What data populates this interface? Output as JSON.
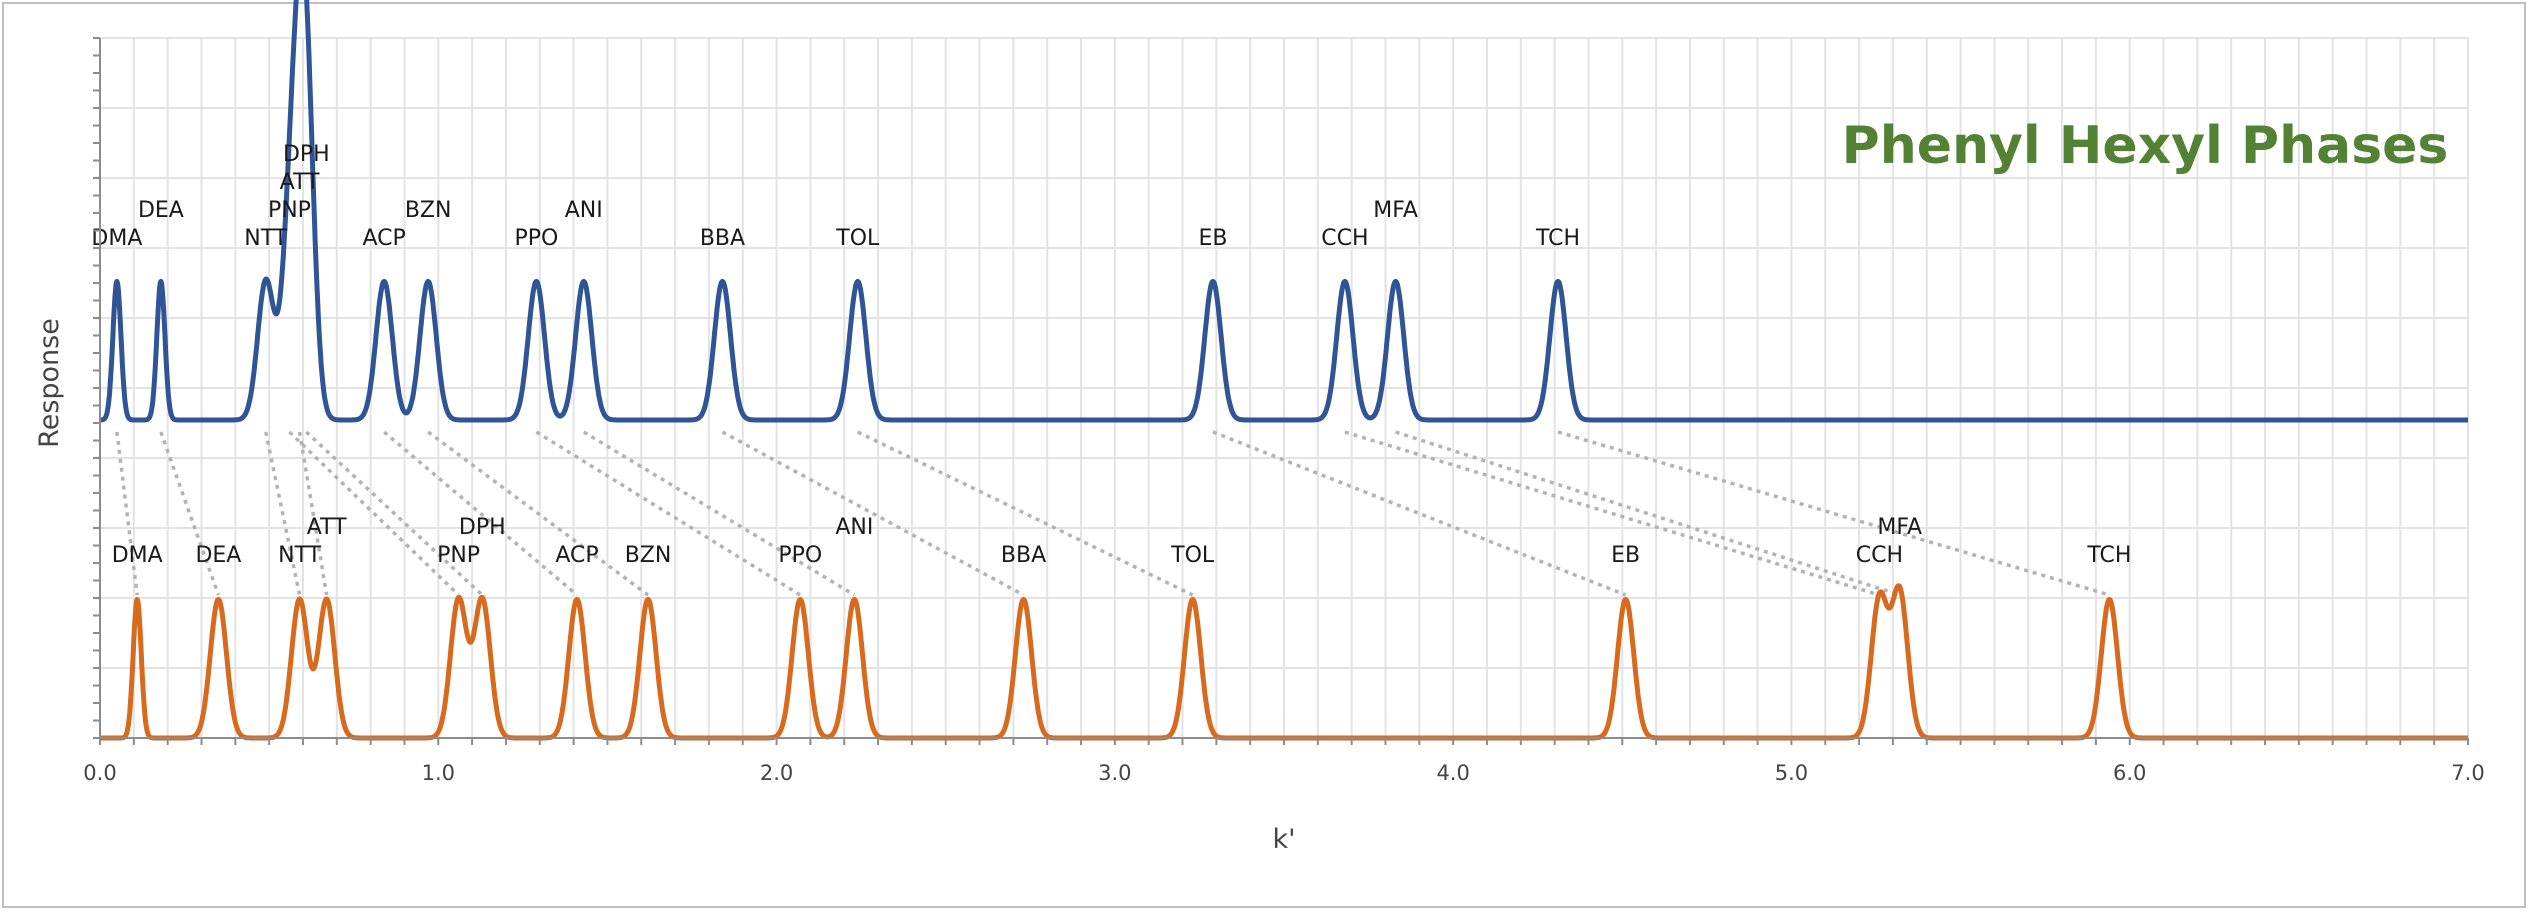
{
  "chart_data": {
    "type": "line",
    "title": "Phenyl Hexyl Phases",
    "xlabel": "k'",
    "ylabel": "Response",
    "xlim": [
      0,
      7.0
    ],
    "x_ticks": [
      "0.0",
      "1.0",
      "2.0",
      "3.0",
      "4.0",
      "5.0",
      "6.0",
      "7.0"
    ],
    "grid": true,
    "colors": {
      "title": "#548235",
      "series_top": "#2f5597",
      "series_bottom": "#d86a1e",
      "connector": "#b3b3b3"
    },
    "series": [
      {
        "role": "top",
        "peaks": [
          {
            "label": "DMA",
            "k": 0.05,
            "h": 0.42
          },
          {
            "label": "DEA",
            "k": 0.18,
            "h": 0.42
          },
          {
            "label": "NTT",
            "k": 0.49,
            "h": 0.42
          },
          {
            "label": "PNP",
            "k": 0.56,
            "h": 0.48
          },
          {
            "label": "ATT",
            "k": 0.59,
            "h": 0.62
          },
          {
            "label": "DPH",
            "k": 0.61,
            "h": 0.8
          },
          {
            "label": "ACP",
            "k": 0.84,
            "h": 0.42
          },
          {
            "label": "BZN",
            "k": 0.97,
            "h": 0.42
          },
          {
            "label": "PPO",
            "k": 1.29,
            "h": 0.42
          },
          {
            "label": "ANI",
            "k": 1.43,
            "h": 0.42
          },
          {
            "label": "BBA",
            "k": 1.84,
            "h": 0.42
          },
          {
            "label": "TOL",
            "k": 2.24,
            "h": 0.42
          },
          {
            "label": "EB",
            "k": 3.29,
            "h": 0.42
          },
          {
            "label": "CCH",
            "k": 3.68,
            "h": 0.42
          },
          {
            "label": "MFA",
            "k": 3.83,
            "h": 0.42
          },
          {
            "label": "TCH",
            "k": 4.31,
            "h": 0.42
          }
        ]
      },
      {
        "role": "bottom",
        "peaks": [
          {
            "label": "DMA",
            "k": 0.11,
            "h": 0.42
          },
          {
            "label": "DEA",
            "k": 0.35,
            "h": 0.42
          },
          {
            "label": "NTT",
            "k": 0.59,
            "h": 0.42
          },
          {
            "label": "ATT",
            "k": 0.67,
            "h": 0.42
          },
          {
            "label": "PNP",
            "k": 1.06,
            "h": 0.42
          },
          {
            "label": "DPH",
            "k": 1.13,
            "h": 0.42
          },
          {
            "label": "ACP",
            "k": 1.41,
            "h": 0.42
          },
          {
            "label": "BZN",
            "k": 1.62,
            "h": 0.42
          },
          {
            "label": "PPO",
            "k": 2.07,
            "h": 0.42
          },
          {
            "label": "ANI",
            "k": 2.23,
            "h": 0.42
          },
          {
            "label": "BBA",
            "k": 2.73,
            "h": 0.42
          },
          {
            "label": "TOL",
            "k": 3.23,
            "h": 0.42
          },
          {
            "label": "EB",
            "k": 4.51,
            "h": 0.42
          },
          {
            "label": "CCH",
            "k": 5.26,
            "h": 0.42
          },
          {
            "label": "MFA",
            "k": 5.32,
            "h": 0.44
          },
          {
            "label": "TCH",
            "k": 5.94,
            "h": 0.42
          }
        ]
      }
    ]
  }
}
